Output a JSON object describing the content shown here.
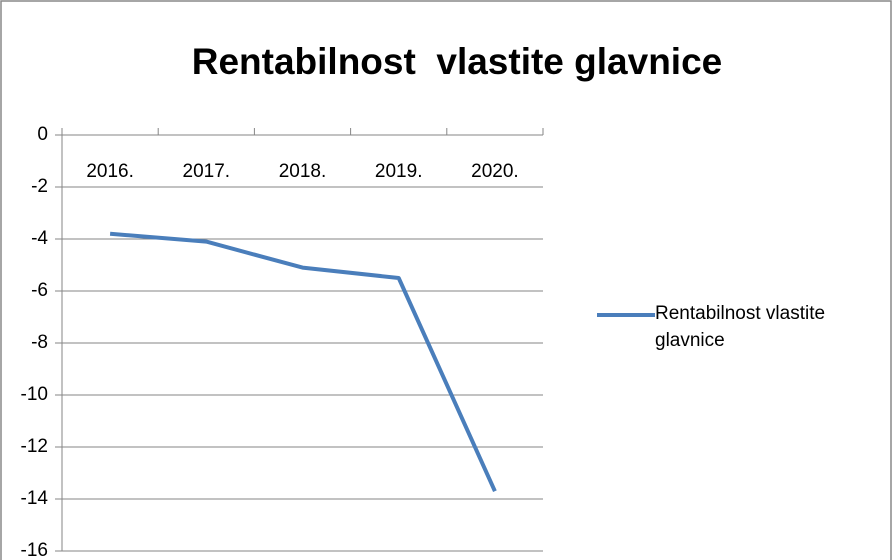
{
  "chart_data": {
    "type": "line",
    "title": "Rentabilnost  vlastite glavnice",
    "categories": [
      "2016.",
      "2017.",
      "2018.",
      "2019.",
      "2020."
    ],
    "series": [
      {
        "name": "Rentabilnost vlastite glavnice",
        "color": "#4a7ebb",
        "values": [
          -3.8,
          -4.1,
          -5.1,
          -5.5,
          -13.7
        ]
      }
    ],
    "ylim": [
      -16,
      0
    ],
    "yticks": [
      0,
      -2,
      -4,
      -6,
      -8,
      -10,
      -12,
      -14,
      -16
    ],
    "grid": true,
    "legend": "right"
  }
}
